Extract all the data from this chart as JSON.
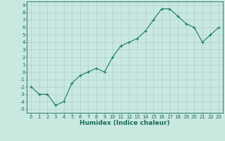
{
  "x": [
    0,
    1,
    2,
    3,
    4,
    5,
    6,
    7,
    8,
    9,
    10,
    11,
    12,
    13,
    14,
    15,
    16,
    17,
    18,
    19,
    20,
    21,
    22,
    23
  ],
  "y": [
    -2,
    -3,
    -3,
    -4.5,
    -4,
    -1.5,
    -0.5,
    0,
    0.5,
    0,
    2,
    3.5,
    4,
    4.5,
    5.5,
    7,
    8.5,
    8.5,
    7.5,
    6.5,
    6,
    4,
    5,
    6
  ],
  "line_color": "#1a7a6a",
  "marker": "+",
  "marker_color": "#1a7a6a",
  "bg_color": "#c8e8e0",
  "grid_color": "#a8ccc8",
  "xlabel": "Humidex (Indice chaleur)",
  "xlim": [
    -0.5,
    23.5
  ],
  "ylim": [
    -5.5,
    9.5
  ],
  "yticks": [
    -5,
    -4,
    -3,
    -2,
    -1,
    0,
    1,
    2,
    3,
    4,
    5,
    6,
    7,
    8,
    9
  ],
  "xticks": [
    0,
    1,
    2,
    3,
    4,
    5,
    6,
    7,
    8,
    9,
    10,
    11,
    12,
    13,
    14,
    15,
    16,
    17,
    18,
    19,
    20,
    21,
    22,
    23
  ],
  "axis_color": "#1a6a5a",
  "tick_fontsize": 5.0,
  "xlabel_fontsize": 6.5,
  "linewidth": 0.8,
  "markersize": 3.5
}
